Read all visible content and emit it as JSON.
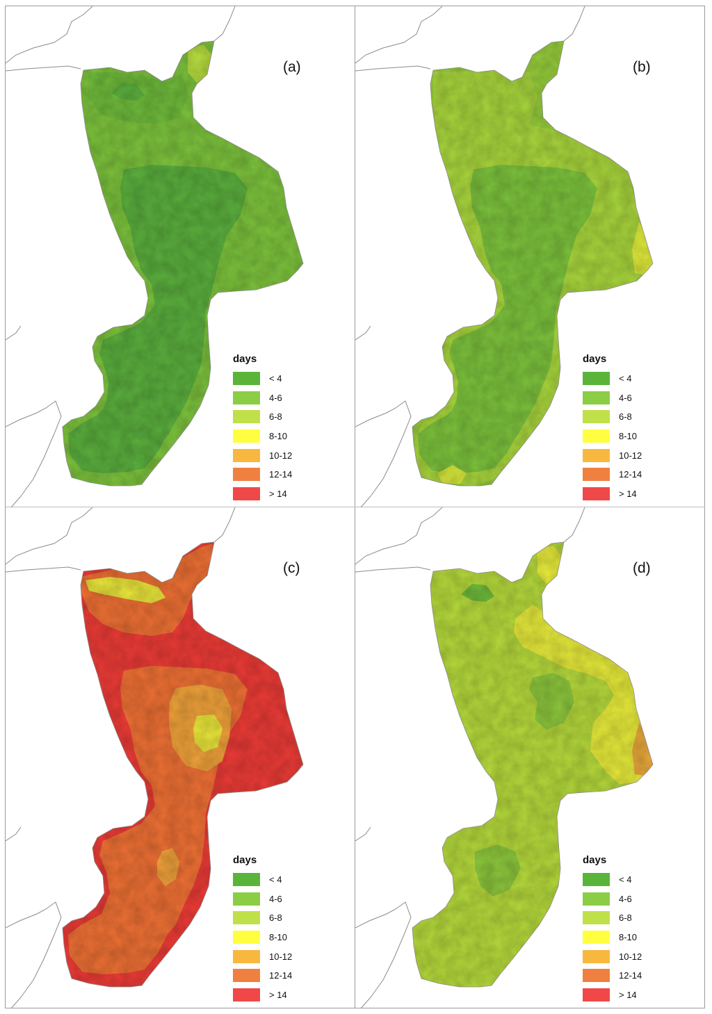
{
  "panels": [
    {
      "label": "(a)",
      "base": "#7cc23c",
      "zones": [
        {
          "c": "#5aae3d",
          "s": "core_big"
        },
        {
          "c": "#5aae3d",
          "s": "south"
        },
        {
          "c": "#6fbb3b",
          "s": "north_edge"
        },
        {
          "c": "#b6dc3f",
          "s": "ne_tip"
        },
        {
          "c": "#5aae3d",
          "s": "nw_blob"
        }
      ]
    },
    {
      "label": "(b)",
      "base": "#96cc3b",
      "zones": [
        {
          "c": "#a8d53c",
          "s": "coast_band"
        },
        {
          "c": "#7cc23c",
          "s": "core_big"
        },
        {
          "c": "#7cc23c",
          "s": "south"
        },
        {
          "c": "#e0ec3a",
          "s": "east_cape"
        },
        {
          "c": "#d6e83c",
          "s": "south_tip"
        },
        {
          "c": "#a8d53c",
          "s": "north_spot"
        }
      ]
    },
    {
      "label": "(c)",
      "base": "#ec3b36",
      "zones": [
        {
          "c": "#ee7034",
          "s": "north_band"
        },
        {
          "c": "#ee7034",
          "s": "core_big"
        },
        {
          "c": "#ee7034",
          "s": "south_ridge"
        },
        {
          "c": "#f0a23a",
          "s": "center"
        },
        {
          "c": "#e8e43a",
          "s": "center_core"
        },
        {
          "c": "#f0a23a",
          "s": "south_spot"
        },
        {
          "c": "#e8e43a",
          "s": "north_yellow"
        }
      ]
    },
    {
      "label": "(d)",
      "base": "#b5d93b",
      "zones": [
        {
          "c": "#e6ea3a",
          "s": "east_band"
        },
        {
          "c": "#e8a83a",
          "s": "east_cape"
        },
        {
          "c": "#8cc63c",
          "s": "center_patch"
        },
        {
          "c": "#8cc63c",
          "s": "south_patch"
        },
        {
          "c": "#6fbb3b",
          "s": "nw_blob"
        },
        {
          "c": "#e6ea3a",
          "s": "ne_tip"
        }
      ]
    }
  ],
  "legend": {
    "title": "days",
    "items": [
      {
        "label": "< 4",
        "color": "#5ab43a"
      },
      {
        "label": "4-6",
        "color": "#8ccd46"
      },
      {
        "label": "6-8",
        "color": "#c0e04a"
      },
      {
        "label": "8-10",
        "color": "#ffff40"
      },
      {
        "label": "10-12",
        "color": "#f8b840"
      },
      {
        "label": "12-14",
        "color": "#f08040"
      },
      {
        "label": "> 14",
        "color": "#f04848"
      }
    ]
  }
}
